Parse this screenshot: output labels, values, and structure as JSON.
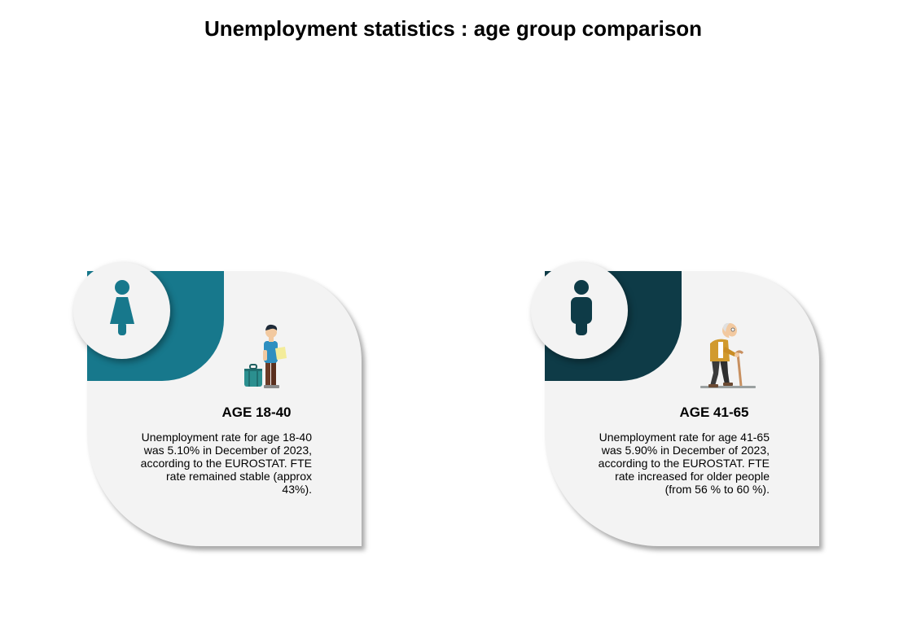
{
  "title": "Unemployment statistics : age group comparison",
  "colors": {
    "accent_young": "#17788c",
    "accent_old": "#0e3b47",
    "card_background": "#f3f3f3"
  },
  "cards": [
    {
      "icon": "person-female-icon",
      "illustration": "young-traveler-illustration",
      "label": "AGE 18-40",
      "description": "Unemployment rate for age 18-40 was 5.10% in December of 2023, according to the EUROSTAT. FTE rate remained stable (approx 43%)."
    },
    {
      "icon": "person-male-icon",
      "illustration": "elderly-man-cane-illustration",
      "label": "AGE 41-65",
      "description": "Unemployment rate for age 41-65 was 5.90% in December of 2023, according to the EUROSTAT. FTE rate increased for older people (from 56 % to 60 %)."
    }
  ]
}
